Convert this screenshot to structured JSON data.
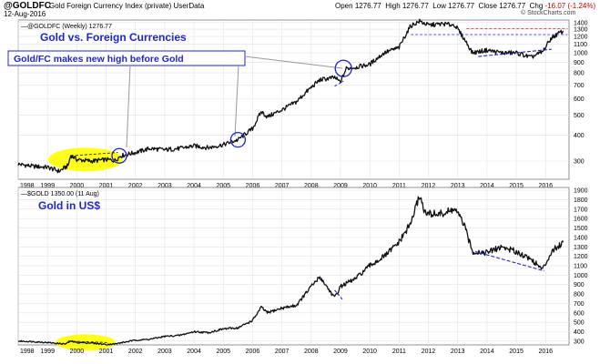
{
  "header": {
    "symbol": "@GOLDFC",
    "index_name": "Gold Foreign Currency Index (private)  UserData",
    "date": "12-Aug-2016",
    "open_label": "Open",
    "open": "1276.77",
    "high_label": "High",
    "high": "1276.77",
    "low_label": "Low",
    "low": "1276.77",
    "close_label": "Close",
    "close": "1276.77",
    "chg_label": "Chg",
    "chg": "-16.07 (-1.24%)",
    "brand": "© StockCharts.com"
  },
  "chart_data": [
    {
      "type": "line",
      "legend": "—@GOLDFC (Weekly) 1276.77",
      "title": "Gold vs. Foreign Currencies",
      "annotation": "Gold/FC makes new high before Gold",
      "x_ticks": [
        "1998",
        "1999",
        "2000",
        "2001",
        "2002",
        "2003",
        "2004",
        "2005",
        "2006",
        "2007",
        "2008",
        "2009",
        "2010",
        "2011",
        "2012",
        "2013",
        "2014",
        "2015",
        "2016"
      ],
      "y_ticks": [
        300,
        400,
        500,
        600,
        700,
        800,
        900,
        1000,
        1100,
        1200,
        1300,
        1400
      ],
      "y_scale": "log",
      "ylim": [
        245,
        1440
      ],
      "x": [
        1998.0,
        1998.5,
        1999.0,
        1999.4,
        1999.7,
        1999.8,
        2000.0,
        2000.5,
        2001.0,
        2001.3,
        2001.5,
        2002.0,
        2002.5,
        2003.0,
        2003.5,
        2004.0,
        2004.5,
        2005.0,
        2005.5,
        2006.0,
        2006.3,
        2006.5,
        2007.0,
        2007.5,
        2008.0,
        2008.3,
        2008.8,
        2009.0,
        2009.2,
        2009.5,
        2010.0,
        2010.5,
        2011.0,
        2011.4,
        2011.7,
        2012.0,
        2012.5,
        2012.9,
        2013.2,
        2013.5,
        2014.0,
        2014.5,
        2015.0,
        2015.5,
        2015.9,
        2016.2,
        2016.6
      ],
      "y": [
        290,
        283,
        280,
        268,
        285,
        320,
        305,
        300,
        305,
        302,
        318,
        330,
        345,
        340,
        345,
        355,
        348,
        360,
        380,
        430,
        520,
        490,
        530,
        580,
        680,
        740,
        760,
        720,
        840,
        850,
        880,
        1000,
        1060,
        1350,
        1420,
        1360,
        1380,
        1360,
        1180,
        1000,
        1030,
        1000,
        1000,
        950,
        1010,
        1180,
        1277
      ]
    },
    {
      "type": "line",
      "legend": "—$GOLD 1350.00 (11 Aug)",
      "title": "Gold in US$",
      "x_ticks": [
        "1998",
        "1999",
        "2000",
        "2001",
        "2002",
        "2003",
        "2004",
        "2005",
        "2006",
        "2007",
        "2008",
        "2009",
        "2010",
        "2011",
        "2012",
        "2013",
        "2014",
        "2015",
        "2016"
      ],
      "y_ticks": [
        300,
        400,
        500,
        600,
        700,
        800,
        900,
        1000,
        1100,
        1200,
        1300,
        1400,
        1500,
        1600,
        1700,
        1800,
        1900
      ],
      "ylim": [
        260,
        1930
      ],
      "x": [
        1998.0,
        1998.5,
        1999.0,
        1999.6,
        1999.8,
        2000.0,
        2000.5,
        2001.0,
        2001.3,
        2002.0,
        2002.5,
        2003.0,
        2003.5,
        2004.0,
        2004.5,
        2005.0,
        2005.5,
        2006.0,
        2006.3,
        2006.5,
        2007.0,
        2007.5,
        2008.0,
        2008.3,
        2008.8,
        2009.0,
        2009.5,
        2010.0,
        2010.5,
        2011.0,
        2011.4,
        2011.7,
        2011.9,
        2012.5,
        2012.9,
        2013.2,
        2013.5,
        2014.0,
        2014.5,
        2015.0,
        2015.5,
        2015.9,
        2016.2,
        2016.6
      ],
      "y": [
        300,
        295,
        285,
        270,
        300,
        285,
        280,
        265,
        270,
        310,
        320,
        350,
        360,
        400,
        390,
        430,
        440,
        520,
        660,
        600,
        650,
        680,
        880,
        980,
        760,
        880,
        960,
        1100,
        1200,
        1350,
        1550,
        1850,
        1650,
        1650,
        1700,
        1550,
        1250,
        1240,
        1300,
        1250,
        1170,
        1060,
        1250,
        1350
      ]
    }
  ]
}
